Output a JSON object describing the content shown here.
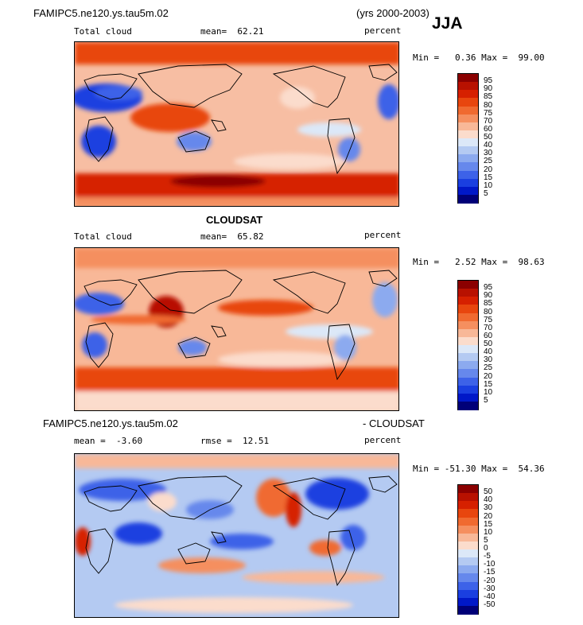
{
  "panel1": {
    "case_name": "FAMIPC5.ne120.ys.tau5m.02",
    "years": "(yrs 2000-2003)",
    "season": "JJA",
    "left_label": "Total cloud",
    "mean_text": "mean=  62.21",
    "units": "percent",
    "minmax": "Min =   0.36 Max =  99.00"
  },
  "panel2": {
    "title": "CLOUDSAT",
    "left_label": "Total cloud",
    "mean_text": "mean=  65.82",
    "units": "percent",
    "minmax": "Min =   2.52 Max =  98.63"
  },
  "panel3": {
    "case_name": "FAMIPC5.ne120.ys.tau5m.02",
    "diff_label": "- CLOUDSAT",
    "mean_text": "mean =  -3.60",
    "rmse_text": "rmse =  12.51",
    "units": "percent",
    "minmax": "Min = -51.30 Max =  54.36"
  },
  "chart_data": [
    {
      "type": "heatmap",
      "title": "Total cloud",
      "mean": 62.21,
      "min": 0.36,
      "max": 99.0,
      "colorbar_levels": [
        95,
        90,
        85,
        80,
        75,
        70,
        60,
        50,
        40,
        30,
        25,
        20,
        15,
        10,
        5
      ],
      "colorbar_colors": [
        "#8b0000",
        "#b81100",
        "#d62000",
        "#e8460e",
        "#f06a30",
        "#f58f5f",
        "#f8b898",
        "#fbdccc",
        "#dce8f8",
        "#b4caf2",
        "#8caaef",
        "#6688ec",
        "#3d62e8",
        "#1a3fe0",
        "#0018c8",
        "#000078"
      ]
    },
    {
      "type": "heatmap",
      "title": "Total cloud",
      "mean": 65.82,
      "min": 2.52,
      "max": 98.63,
      "colorbar_levels": [
        95,
        90,
        85,
        80,
        75,
        70,
        60,
        50,
        40,
        30,
        25,
        20,
        15,
        10,
        5
      ],
      "colorbar_colors": [
        "#8b0000",
        "#b81100",
        "#d62000",
        "#e8460e",
        "#f06a30",
        "#f58f5f",
        "#f8b898",
        "#fbdccc",
        "#dce8f8",
        "#b4caf2",
        "#8caaef",
        "#6688ec",
        "#3d62e8",
        "#1a3fe0",
        "#0018c8",
        "#000078"
      ]
    },
    {
      "type": "heatmap",
      "title": "- CLOUDSAT",
      "mean": -3.6,
      "rmse": 12.51,
      "min": -51.3,
      "max": 54.36,
      "colorbar_levels": [
        50,
        40,
        30,
        20,
        15,
        10,
        5,
        0,
        -5,
        -10,
        -15,
        -20,
        -30,
        -40,
        -50
      ],
      "colorbar_colors": [
        "#8b0000",
        "#b81100",
        "#d62000",
        "#e8460e",
        "#f06a30",
        "#f58f5f",
        "#f8b898",
        "#fbdccc",
        "#dce8f8",
        "#b4caf2",
        "#8caaef",
        "#6688ec",
        "#3d62e8",
        "#1a3fe0",
        "#0018c8",
        "#000078"
      ]
    }
  ]
}
